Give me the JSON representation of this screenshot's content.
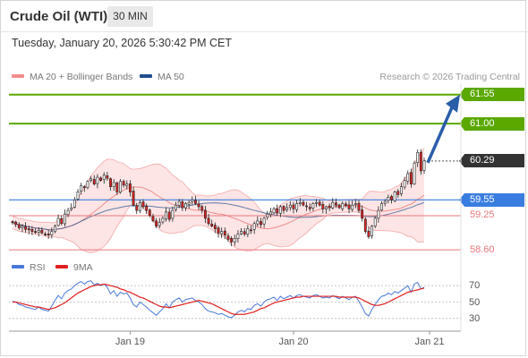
{
  "header": {
    "title": "Crude Oil (WTI)",
    "timeframe": "30 MIN",
    "datetime": "Tuesday, January 20, 2026 5:30:42 PM CET"
  },
  "legend": {
    "items": [
      {
        "label": "MA 20 + Bollinger Bands",
        "color": "#f08c8c"
      },
      {
        "label": "MA 50",
        "color": "#1f4e8c"
      }
    ],
    "copyright": "Research © 2026 Trading Central"
  },
  "rsi_legend": {
    "items": [
      {
        "label": "RSI",
        "color": "#4a78d8"
      },
      {
        "label": "9MA",
        "color": "#e02020"
      }
    ]
  },
  "price_levels": [
    {
      "label": "61.55",
      "value": 61.55,
      "kind": "target"
    },
    {
      "label": "61.00",
      "value": 61.0,
      "kind": "target"
    },
    {
      "label": "60.29",
      "value": 60.29,
      "kind": "last"
    },
    {
      "label": "59.55",
      "value": 59.55,
      "kind": "pivot"
    },
    {
      "label": "59.25",
      "value": 59.25,
      "kind": "support"
    },
    {
      "label": "58.60",
      "value": 58.6,
      "kind": "support"
    }
  ],
  "colors": {
    "target": "#5aa800",
    "pivot": "#3a7de0",
    "support": "#e8777d",
    "last": "#333333",
    "bollinger_fill": "#fde0e0",
    "up_candle": "#ffffff",
    "down_candle": "#e02020",
    "arrow": "#2a5da8",
    "rsi": "#4a78d8",
    "rsi_ma": "#e02020"
  },
  "rsi_ticks": [
    "70",
    "50",
    "30"
  ],
  "chart_data": {
    "type": "candlestick",
    "instrument": "Crude Oil (WTI)",
    "interval": "30 MIN",
    "x_tick_labels": [
      "Jan 19",
      "Jan 20",
      "Jan 21"
    ],
    "ylim": [
      58.45,
      61.75
    ],
    "close": [
      59.12,
      59.08,
      59.02,
      59.05,
      58.99,
      58.98,
      58.95,
      58.93,
      58.97,
      58.92,
      58.9,
      58.88,
      58.95,
      59.05,
      59.2,
      59.1,
      59.28,
      59.35,
      59.4,
      59.55,
      59.7,
      59.82,
      59.78,
      59.9,
      59.95,
      59.85,
      59.98,
      59.92,
      60.02,
      59.96,
      59.8,
      59.88,
      59.7,
      59.9,
      59.83,
      59.85,
      59.7,
      59.45,
      59.35,
      59.5,
      59.42,
      59.35,
      59.25,
      59.15,
      59.05,
      59.12,
      59.2,
      59.32,
      59.18,
      59.35,
      59.45,
      59.52,
      59.4,
      59.48,
      59.5,
      59.55,
      59.48,
      59.42,
      59.35,
      59.2,
      59.1,
      59.05,
      59.0,
      58.92,
      58.95,
      58.88,
      58.8,
      58.75,
      58.82,
      58.9,
      58.95,
      58.9,
      59.0,
      58.98,
      59.1,
      59.15,
      59.08,
      59.2,
      59.28,
      59.32,
      59.38,
      59.3,
      59.42,
      59.35,
      59.4,
      59.45,
      59.38,
      59.48,
      59.5,
      59.45,
      59.42,
      59.38,
      59.48,
      59.5,
      59.45,
      59.38,
      59.42,
      59.4,
      59.5,
      59.45,
      59.4,
      59.48,
      59.44,
      59.38,
      59.45,
      59.48,
      59.35,
      59.2,
      58.95,
      58.85,
      59.05,
      59.2,
      59.35,
      59.48,
      59.52,
      59.6,
      59.55,
      59.7,
      59.65,
      59.8,
      59.92,
      60.05,
      59.85,
      60.25,
      60.45,
      60.1,
      60.29
    ]
  },
  "rsi_data": {
    "rsi": [
      51,
      50,
      47,
      46,
      44,
      43,
      42,
      41,
      44,
      41,
      40,
      39,
      45,
      52,
      58,
      54,
      61,
      64,
      66,
      70,
      73,
      75,
      72,
      75,
      76,
      71,
      73,
      70,
      72,
      68,
      60,
      64,
      57,
      62,
      60,
      61,
      55,
      47,
      44,
      50,
      47,
      44,
      40,
      37,
      34,
      38,
      42,
      48,
      43,
      50,
      53,
      55,
      50,
      53,
      54,
      55,
      52,
      50,
      47,
      42,
      39,
      38,
      37,
      35,
      36,
      34,
      32,
      31,
      34,
      38,
      40,
      38,
      42,
      41,
      46,
      48,
      45,
      50,
      53,
      54,
      56,
      52,
      57,
      54,
      56,
      58,
      55,
      58,
      59,
      57,
      56,
      55,
      58,
      59,
      57,
      55,
      56,
      55,
      58,
      56,
      54,
      57,
      55,
      53,
      56,
      57,
      51,
      44,
      36,
      33,
      41,
      47,
      53,
      57,
      58,
      61,
      59,
      63,
      61,
      64,
      67,
      70,
      62,
      72,
      74,
      66,
      68
    ],
    "ma9": [
      50,
      50,
      49,
      48,
      47,
      46,
      45,
      44,
      44,
      43,
      42,
      41,
      42,
      43,
      45,
      47,
      49,
      52,
      55,
      58,
      61,
      63,
      65,
      67,
      69,
      70,
      71,
      71,
      72,
      71,
      70,
      69,
      68,
      66,
      65,
      63,
      62,
      60,
      58,
      56,
      55,
      53,
      51,
      49,
      47,
      45,
      44,
      44,
      43,
      44,
      45,
      46,
      47,
      48,
      49,
      50,
      51,
      52,
      51,
      50,
      49,
      48,
      46,
      44,
      42,
      40,
      38,
      36,
      35,
      35,
      35,
      35,
      36,
      37,
      38,
      40,
      42,
      43,
      45,
      47,
      49,
      50,
      51,
      52,
      53,
      54,
      55,
      56,
      56,
      57,
      57,
      57,
      57,
      57,
      57,
      57,
      57,
      57,
      57,
      57,
      56,
      56,
      56,
      56,
      56,
      56,
      55,
      53,
      51,
      49,
      47,
      46,
      46,
      47,
      48,
      50,
      52,
      54,
      56,
      58,
      60,
      62,
      63,
      64,
      65,
      66,
      67
    ]
  }
}
